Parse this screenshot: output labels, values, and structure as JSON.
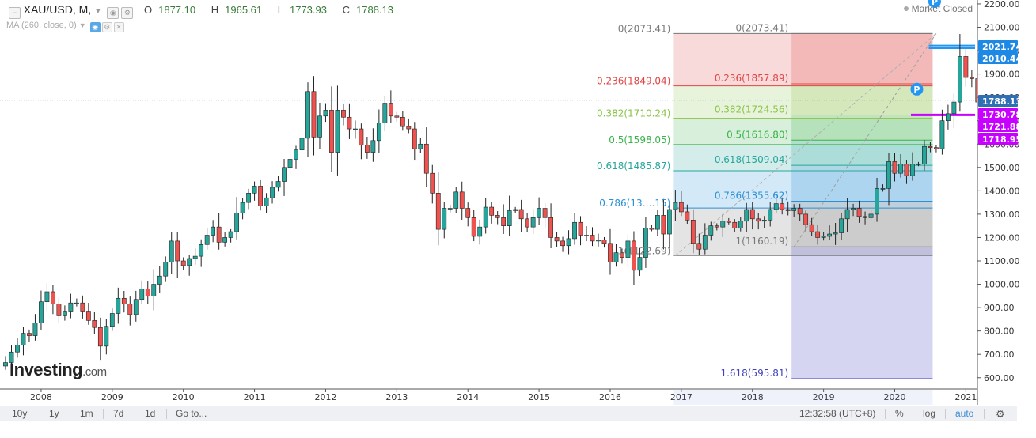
{
  "symbol": {
    "name": "XAU/USD, M,",
    "dropdown_icon": "chevron-down-icon"
  },
  "ohlc": {
    "o_label": "O",
    "o": "1877.10",
    "h_label": "H",
    "h": "1965.61",
    "l_label": "L",
    "l": "1773.93",
    "c_label": "C",
    "c": "1788.13"
  },
  "indicator": {
    "label": "MA (260, close, 0)"
  },
  "status": {
    "market": "Market Closed"
  },
  "logo": {
    "main": "Investing",
    "suffix": ".com"
  },
  "toolbar": {
    "timeframes": [
      "10y",
      "1y",
      "1m",
      "7d",
      "1d",
      "Go to..."
    ],
    "time": "12:32:58 (UTC+8)",
    "percent": "%",
    "log": "log",
    "auto": "auto",
    "settings_icon": "gear-icon"
  },
  "colors": {
    "up": "#26a69a",
    "down": "#ef5350",
    "accent": "#2196f3",
    "magenta": "#c800ff"
  },
  "chart_data": {
    "type": "candlestick",
    "title": "XAU/USD, M,",
    "ylim": [
      550,
      2230
    ],
    "y_ticks": [
      600,
      700,
      800,
      900,
      1000,
      1100,
      1200,
      1300,
      1400,
      1500,
      1600,
      1700,
      1800,
      1900,
      2000,
      2100,
      2200
    ],
    "y_tick_labels": [
      "600.00",
      "700.00",
      "800.00",
      "900.00",
      "1000.00",
      "1100.00",
      "1200.00",
      "1300.00",
      "1400.00",
      "1500.00",
      "1600.00",
      "1700.00",
      "1800.00",
      "1900.00",
      "2000.00",
      "2100.00",
      "2200.00"
    ],
    "x_years": [
      "2008",
      "2009",
      "2010",
      "2011",
      "2012",
      "2013",
      "2014",
      "2015",
      "2016",
      "2017",
      "2018",
      "2019",
      "2020",
      "2021"
    ],
    "x_start": "2007-07",
    "x_end": "2021-02",
    "closes": [
      665,
      710,
      740,
      790,
      780,
      835,
      925,
      968,
      915,
      865,
      885,
      920,
      920,
      885,
      845,
      815,
      735,
      820,
      875,
      940,
      915,
      870,
      935,
      980,
      950,
      1000,
      1035,
      1095,
      1185,
      1100,
      1080,
      1110,
      1120,
      1170,
      1210,
      1245,
      1180,
      1200,
      1225,
      1305,
      1350,
      1390,
      1420,
      1335,
      1370,
      1415,
      1440,
      1500,
      1535,
      1575,
      1625,
      1825,
      1630,
      1720,
      1745,
      1565,
      1745,
      1715,
      1665,
      1665,
      1595,
      1565,
      1615,
      1690,
      1775,
      1720,
      1715,
      1675,
      1665,
      1580,
      1600,
      1475,
      1390,
      1235,
      1325,
      1325,
      1395,
      1325,
      1285,
      1205,
      1245,
      1330,
      1295,
      1285,
      1250,
      1315,
      1320,
      1280,
      1245,
      1285,
      1325,
      1285,
      1200,
      1185,
      1165,
      1195,
      1265,
      1210,
      1210,
      1185,
      1190,
      1175,
      1095,
      1135,
      1115,
      1185,
      1060,
      1115,
      1240,
      1235,
      1295,
      1215,
      1320,
      1350,
      1310,
      1275,
      1175,
      1150,
      1210,
      1250,
      1245,
      1270,
      1265,
      1240,
      1270,
      1320,
      1280,
      1270,
      1275,
      1320,
      1345,
      1320,
      1315,
      1325,
      1300,
      1255,
      1225,
      1200,
      1205,
      1215,
      1220,
      1280,
      1320,
      1325,
      1290,
      1285,
      1300,
      1410,
      1410,
      1525,
      1475,
      1515,
      1465,
      1515,
      1515,
      1590,
      1585,
      1580,
      1700,
      1730,
      1780,
      1975,
      1885,
      1880,
      1780
    ],
    "last_price": 1788.13,
    "price_badges": [
      {
        "label": "2021.74",
        "kind": "blue"
      },
      {
        "label": "2010.44",
        "kind": "blue"
      },
      {
        "label": "1788.13",
        "kind": "blue"
      },
      {
        "label": "1730.78",
        "kind": "magenta"
      },
      {
        "label": "1721.88",
        "kind": "magenta"
      },
      {
        "label": "1718.95",
        "kind": "magenta"
      }
    ],
    "fib_left": {
      "start": "2016-12",
      "end": "2020-07",
      "levels": [
        {
          "ratio": "0",
          "price": 2073.41,
          "text": "0(2073.41)",
          "color": "#787878"
        },
        {
          "ratio": "0.236",
          "price": 1849.04,
          "text": "0.236(1849.04)",
          "color": "#e04545"
        },
        {
          "ratio": "0.382",
          "price": 1710.24,
          "text": "0.382(1710.24)",
          "color": "#8bc34a"
        },
        {
          "ratio": "0.5",
          "price": 1598.05,
          "text": "0.5(1598.05)",
          "color": "#3ab34a"
        },
        {
          "ratio": "0.618",
          "price": 1485.87,
          "text": "0.618(1485.87)",
          "color": "#26a69a"
        },
        {
          "ratio": "0.786",
          "price": 1326.15,
          "text": "0.786(13….15)",
          "color": "#2a8fd6"
        },
        {
          "ratio": "1",
          "price": 1122.69,
          "text": "1(1122.69)",
          "color": "#787878"
        }
      ]
    },
    "fib_right": {
      "start": "2018-08",
      "end": "2020-07",
      "levels": [
        {
          "ratio": "0",
          "price": 2073.41,
          "text": "0(2073.41)",
          "color": "#787878"
        },
        {
          "ratio": "0.236",
          "price": 1857.89,
          "text": "0.236(1857.89)",
          "color": "#e04545"
        },
        {
          "ratio": "0.382",
          "price": 1724.56,
          "text": "0.382(1724.56)",
          "color": "#8bc34a"
        },
        {
          "ratio": "0.5",
          "price": 1616.8,
          "text": "0.5(1616.80)",
          "color": "#3ab34a"
        },
        {
          "ratio": "0.618",
          "price": 1509.04,
          "text": "0.618(1509.04)",
          "color": "#26a69a"
        },
        {
          "ratio": "0.786",
          "price": 1355.62,
          "text": "0.786(1355.62)",
          "color": "#2a8fd6"
        },
        {
          "ratio": "1",
          "price": 1160.19,
          "text": "1(1160.19)",
          "color": "#787878"
        },
        {
          "ratio": "1.618",
          "price": 595.81,
          "text": "1.618(595.81)",
          "color": "#3f3fbf"
        }
      ]
    },
    "markers": [
      {
        "label": "P",
        "date": "2020-08",
        "price": 2210
      },
      {
        "label": "P",
        "date": "2020-05",
        "price": 1835
      }
    ],
    "grid": false,
    "legend": "top-left"
  }
}
